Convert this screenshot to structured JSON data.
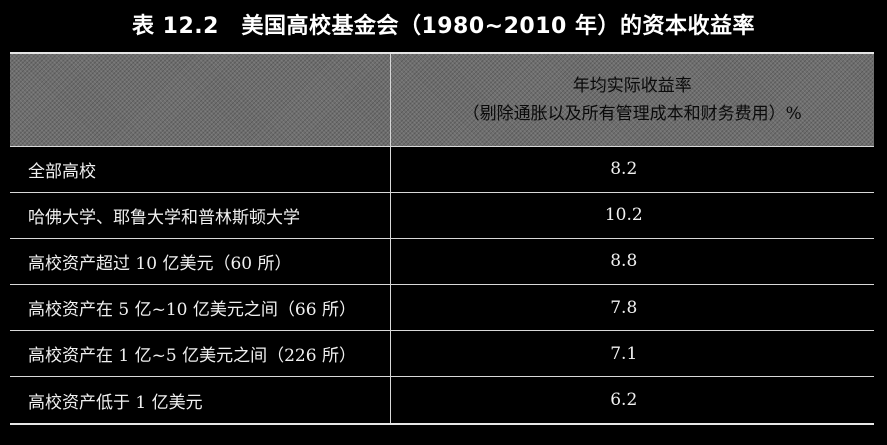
{
  "title": "表 12.2　美国高校基金会（1980~2010 年）的资本收益率",
  "table": {
    "header": {
      "first_col": "",
      "value_col_line1": "年均实际收益率",
      "value_col_line2": "（剔除通胀以及所有管理成本和财务费用）%"
    },
    "rows": [
      {
        "label": "全部高校",
        "value": "8.2"
      },
      {
        "label": "哈佛大学、耶鲁大学和普林斯顿大学",
        "value": "10.2"
      },
      {
        "label": "高校资产超过 10 亿美元（60 所）",
        "value": "8.8"
      },
      {
        "label": "高校资产在 5 亿~10 亿美元之间（66 所）",
        "value": "7.8"
      },
      {
        "label": "高校资产在 1 亿~5 亿美元之间（226 所）",
        "value": "7.1"
      },
      {
        "label": "高校资产低于 1 亿美元",
        "value": "6.2"
      }
    ]
  }
}
